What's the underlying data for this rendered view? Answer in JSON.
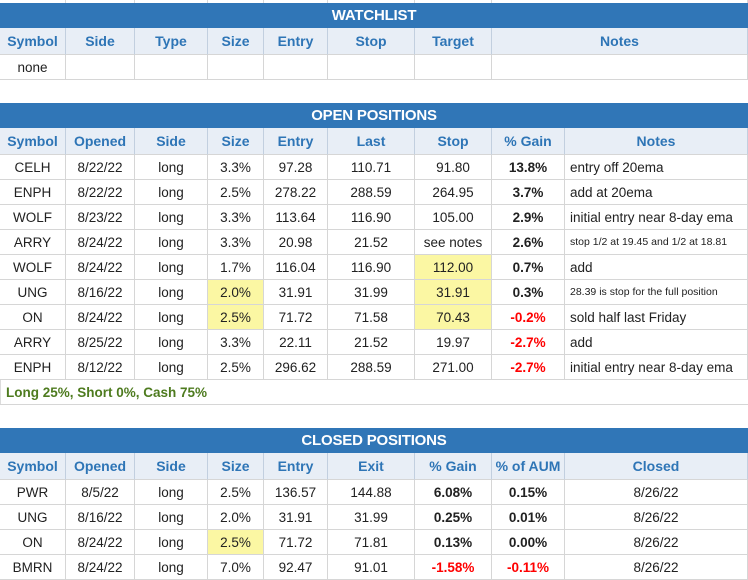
{
  "colors": {
    "section_bar_blue": "#3076B7",
    "header_text_blue": "#2E75B6",
    "header_bg": "#E8EEF6",
    "highlight_yellow": "#FBF7A3",
    "negative_red": "#FF0000",
    "summary_green": "#4E7B1F"
  },
  "tables": [
    {
      "title": "WATCHLIST",
      "columns": [
        "Symbol",
        "Side",
        "Type",
        "Size",
        "Entry",
        "Stop",
        "Target",
        "Notes"
      ],
      "left_cols": [
        7
      ],
      "rows": [
        [
          {
            "t": "none"
          },
          {
            "t": ""
          },
          {
            "t": ""
          },
          {
            "t": ""
          },
          {
            "t": ""
          },
          {
            "t": ""
          },
          {
            "t": ""
          },
          {
            "t": ""
          }
        ]
      ]
    },
    {
      "title": "OPEN POSITIONS",
      "columns": [
        "Symbol",
        "Opened",
        "Side",
        "Size",
        "Entry",
        "Last",
        "Stop",
        "% Gain",
        "Notes"
      ],
      "left_cols": [
        8
      ],
      "rows": [
        [
          {
            "t": "CELH"
          },
          {
            "t": "8/22/22"
          },
          {
            "t": "long"
          },
          {
            "t": "3.3%"
          },
          {
            "t": "97.28"
          },
          {
            "t": "110.71"
          },
          {
            "t": "91.80"
          },
          {
            "t": "13.8%",
            "k": "b"
          },
          {
            "t": "entry off 20ema"
          }
        ],
        [
          {
            "t": "ENPH"
          },
          {
            "t": "8/22/22"
          },
          {
            "t": "long"
          },
          {
            "t": "2.5%"
          },
          {
            "t": "278.22"
          },
          {
            "t": "288.59"
          },
          {
            "t": "264.95"
          },
          {
            "t": "3.7%",
            "k": "b"
          },
          {
            "t": "add at 20ema"
          }
        ],
        [
          {
            "t": "WOLF"
          },
          {
            "t": "8/23/22"
          },
          {
            "t": "long"
          },
          {
            "t": "3.3%"
          },
          {
            "t": "113.64"
          },
          {
            "t": "116.90"
          },
          {
            "t": "105.00"
          },
          {
            "t": "2.9%",
            "k": "b"
          },
          {
            "t": "initial entry near 8-day ema"
          }
        ],
        [
          {
            "t": "ARRY"
          },
          {
            "t": "8/24/22"
          },
          {
            "t": "long"
          },
          {
            "t": "3.3%"
          },
          {
            "t": "20.98"
          },
          {
            "t": "21.52"
          },
          {
            "t": "see notes"
          },
          {
            "t": "2.6%",
            "k": "b"
          },
          {
            "t": "stop 1/2 at 19.45 and 1/2 at 18.81",
            "k": "sm"
          }
        ],
        [
          {
            "t": "WOLF"
          },
          {
            "t": "8/24/22"
          },
          {
            "t": "long"
          },
          {
            "t": "1.7%"
          },
          {
            "t": "116.04"
          },
          {
            "t": "116.90"
          },
          {
            "t": "112.00",
            "k": "y"
          },
          {
            "t": "0.7%",
            "k": "b"
          },
          {
            "t": "add"
          }
        ],
        [
          {
            "t": "UNG"
          },
          {
            "t": "8/16/22"
          },
          {
            "t": "long"
          },
          {
            "t": "2.0%",
            "k": "y"
          },
          {
            "t": "31.91"
          },
          {
            "t": "31.99"
          },
          {
            "t": "31.91",
            "k": "y"
          },
          {
            "t": "0.3%",
            "k": "b"
          },
          {
            "t": "28.39 is stop for the full position",
            "k": "sm"
          }
        ],
        [
          {
            "t": "ON"
          },
          {
            "t": "8/24/22"
          },
          {
            "t": "long"
          },
          {
            "t": "2.5%",
            "k": "y"
          },
          {
            "t": "71.72"
          },
          {
            "t": "71.58"
          },
          {
            "t": "70.43",
            "k": "y"
          },
          {
            "t": "-0.2%",
            "k": "b red"
          },
          {
            "t": "sold half last Friday"
          }
        ],
        [
          {
            "t": "ARRY"
          },
          {
            "t": "8/25/22"
          },
          {
            "t": "long"
          },
          {
            "t": "3.3%"
          },
          {
            "t": "22.11"
          },
          {
            "t": "21.52"
          },
          {
            "t": "19.97"
          },
          {
            "t": "-2.7%",
            "k": "b red"
          },
          {
            "t": "add"
          }
        ],
        [
          {
            "t": "ENPH"
          },
          {
            "t": "8/12/22"
          },
          {
            "t": "long"
          },
          {
            "t": "2.5%"
          },
          {
            "t": "296.62"
          },
          {
            "t": "288.59"
          },
          {
            "t": "271.00"
          },
          {
            "t": "-2.7%",
            "k": "b red"
          },
          {
            "t": "initial entry near 8-day ema"
          }
        ]
      ],
      "summary": "Long 25%, Short 0%, Cash 75%"
    },
    {
      "title": "CLOSED POSITIONS",
      "columns": [
        "Symbol",
        "Opened",
        "Side",
        "Size",
        "Entry",
        "Exit",
        "% Gain",
        "% of AUM",
        "Closed"
      ],
      "left_cols": [],
      "rows": [
        [
          {
            "t": "PWR"
          },
          {
            "t": "8/5/22"
          },
          {
            "t": "long"
          },
          {
            "t": "2.5%"
          },
          {
            "t": "136.57"
          },
          {
            "t": "144.88"
          },
          {
            "t": "6.08%",
            "k": "b"
          },
          {
            "t": "0.15%",
            "k": "b"
          },
          {
            "t": "8/26/22"
          }
        ],
        [
          {
            "t": "UNG"
          },
          {
            "t": "8/16/22"
          },
          {
            "t": "long"
          },
          {
            "t": "2.0%"
          },
          {
            "t": "31.91"
          },
          {
            "t": "31.99"
          },
          {
            "t": "0.25%",
            "k": "b"
          },
          {
            "t": "0.01%",
            "k": "b"
          },
          {
            "t": "8/26/22"
          }
        ],
        [
          {
            "t": "ON"
          },
          {
            "t": "8/24/22"
          },
          {
            "t": "long"
          },
          {
            "t": "2.5%",
            "k": "y"
          },
          {
            "t": "71.72"
          },
          {
            "t": "71.81"
          },
          {
            "t": "0.13%",
            "k": "b"
          },
          {
            "t": "0.00%",
            "k": "b"
          },
          {
            "t": "8/26/22"
          }
        ],
        [
          {
            "t": "BMRN"
          },
          {
            "t": "8/24/22"
          },
          {
            "t": "long"
          },
          {
            "t": "7.0%"
          },
          {
            "t": "92.47"
          },
          {
            "t": "91.01"
          },
          {
            "t": "-1.58%",
            "k": "b red"
          },
          {
            "t": "-0.11%",
            "k": "b red"
          },
          {
            "t": "8/26/22"
          }
        ]
      ]
    }
  ]
}
